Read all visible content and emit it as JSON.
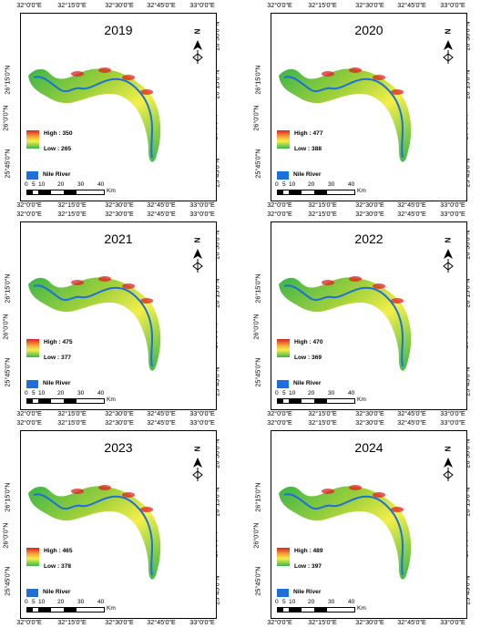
{
  "axes": {
    "top_ticks": [
      "32°0'0\"E",
      "32°15'0\"E",
      "32°30'0\"E",
      "32°45'0\"E",
      "33°0'0\"E"
    ],
    "left_ticks": [
      "26°15'0\"N",
      "26°0'0\"N",
      "25°45'0\"N"
    ],
    "right_ticks": [
      "26°30'0\"N",
      "26°15'0\"N",
      "26°0'0\"N",
      "25°45'0\"N"
    ]
  },
  "panels": [
    {
      "year": "2019",
      "high": "High : 350",
      "low": "Low : 265"
    },
    {
      "year": "2020",
      "high": "High : 477",
      "low": "Low : 388"
    },
    {
      "year": "2021",
      "high": "High : 475",
      "low": "Low : 377"
    },
    {
      "year": "2022",
      "high": "High : 470",
      "low": "Low : 369"
    },
    {
      "year": "2023",
      "high": "High : 465",
      "low": "Low : 378"
    },
    {
      "year": "2024",
      "high": "High : 489",
      "low": "Low : 397"
    }
  ],
  "legend": {
    "river_label": "Nile River",
    "scale_labels": [
      "0",
      "5",
      "10",
      "20",
      "30",
      "40"
    ],
    "scale_unit": "Km",
    "north_letter": "N"
  },
  "colors": {
    "high": "#e02020",
    "mid": "#f3ef4a",
    "low": "#39b54a",
    "river": "#1e6fd9"
  }
}
